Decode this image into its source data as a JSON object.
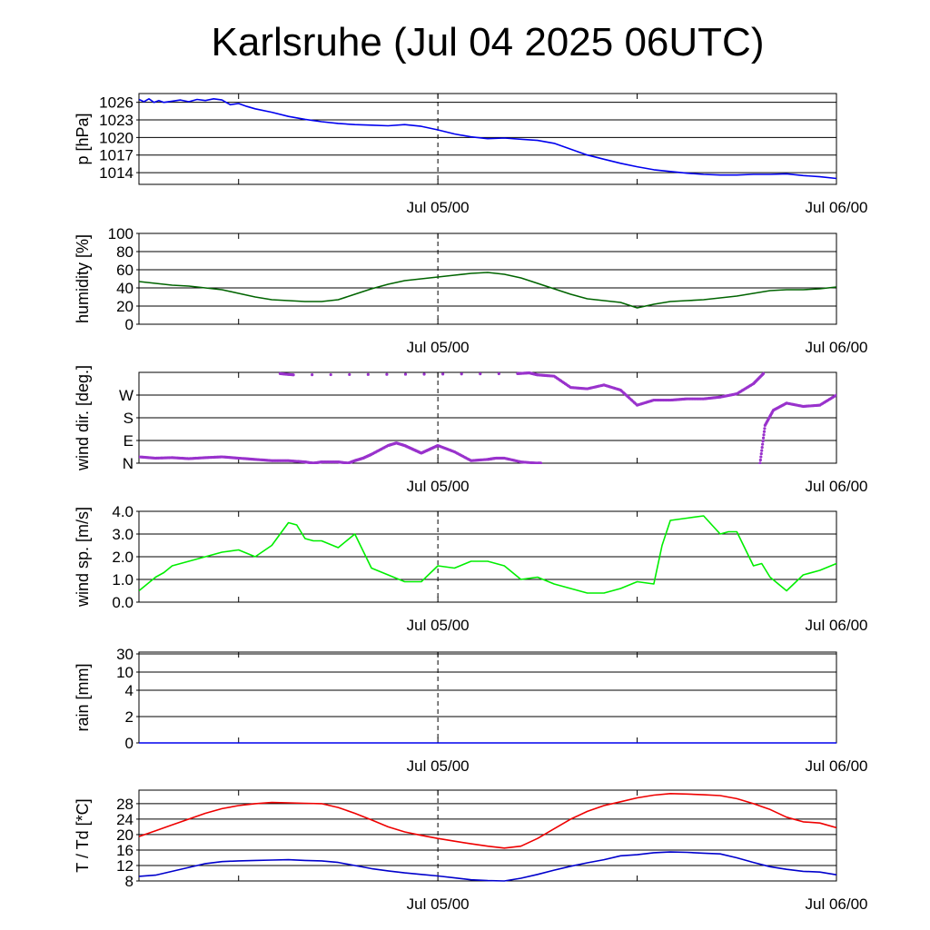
{
  "title": "Karlsruhe (Jul 04 2025 06UTC)",
  "colors": {
    "pressure": "#0000ee",
    "humidity": "#006400",
    "wind_dir": "#9932cc",
    "wind_speed": "#00ee00",
    "rain": "#0000ee",
    "temperature": "#ee0000",
    "dewpoint": "#0000cc",
    "grid": "#000000"
  },
  "x_axis": {
    "unit": "hours since Jul 04 06UTC",
    "range_hours": [
      0,
      42
    ],
    "major_tick_labels": [
      {
        "hour": 18,
        "label": "Jul 05/00"
      },
      {
        "hour": 42,
        "label": "Jul 06/00"
      }
    ],
    "minor_tick_hours": [
      6,
      18,
      30,
      42
    ],
    "marker_hour": 18
  },
  "chart_data": [
    {
      "type": "line",
      "panel": "pressure",
      "ylabel": "p [hPa]",
      "ylim": [
        1012,
        1027.5
      ],
      "yticks": [
        1026,
        1023,
        1020,
        1017,
        1014
      ],
      "ytick_labels": [
        "1026",
        "1023",
        "1020",
        "1017",
        "1014"
      ],
      "series": [
        {
          "x": [
            0,
            0.3,
            0.6,
            0.9,
            1.2,
            1.5,
            2,
            2.5,
            3,
            3.5,
            4,
            4.5,
            5,
            5.5,
            6,
            6.5,
            7,
            8,
            9,
            10,
            11,
            12,
            13,
            14,
            15,
            16,
            17,
            18,
            19,
            20,
            21,
            22,
            23,
            24,
            25,
            26,
            27,
            28,
            29,
            30,
            31,
            32,
            33,
            34,
            35,
            36,
            37,
            38,
            39,
            40,
            41,
            42
          ],
          "values": [
            1026.5,
            1026.1,
            1026.6,
            1026.0,
            1026.3,
            1026.0,
            1026.2,
            1026.4,
            1026.1,
            1026.5,
            1026.3,
            1026.6,
            1026.4,
            1025.6,
            1025.8,
            1025.3,
            1024.9,
            1024.3,
            1023.6,
            1023.1,
            1022.7,
            1022.4,
            1022.2,
            1022.1,
            1022.0,
            1022.2,
            1021.9,
            1021.3,
            1020.6,
            1020.1,
            1019.8,
            1019.9,
            1019.7,
            1019.5,
            1019.0,
            1018.0,
            1017.0,
            1016.3,
            1015.6,
            1015.0,
            1014.5,
            1014.2,
            1013.9,
            1013.7,
            1013.6,
            1013.6,
            1013.7,
            1013.7,
            1013.8,
            1013.5,
            1013.3,
            1013.0
          ]
        }
      ]
    },
    {
      "type": "line",
      "panel": "humidity",
      "ylabel": "humidity [%]",
      "ylim": [
        0,
        100
      ],
      "yticks": [
        0,
        20,
        40,
        60,
        80,
        100
      ],
      "ytick_labels": [
        "0",
        "20",
        "40",
        "60",
        "80",
        "100"
      ],
      "series": [
        {
          "x": [
            0,
            1,
            2,
            3,
            4,
            5,
            6,
            7,
            8,
            9,
            10,
            11,
            12,
            13,
            14,
            15,
            16,
            17,
            18,
            19,
            20,
            21,
            22,
            23,
            24,
            25,
            26,
            27,
            28,
            29,
            30,
            31,
            32,
            33,
            34,
            35,
            36,
            37,
            38,
            39,
            40,
            41,
            42
          ],
          "values": [
            47,
            45,
            43,
            42,
            40,
            38,
            34,
            30,
            27,
            26,
            25,
            25,
            27,
            33,
            39,
            44,
            48,
            50,
            52,
            54,
            56,
            57,
            55,
            51,
            45,
            39,
            33,
            28,
            26,
            24,
            18,
            22,
            25,
            26,
            27,
            29,
            31,
            34,
            37,
            38,
            38,
            39,
            41
          ]
        }
      ]
    },
    {
      "type": "scatter",
      "panel": "wind_direction",
      "ylabel": "wind dir. [deg.]",
      "ylim": [
        0,
        360
      ],
      "yticks": [
        0,
        90,
        180,
        270
      ],
      "ytick_labels": [
        "N",
        "E",
        "S",
        "W"
      ],
      "series": [
        {
          "name": "low",
          "x": [
            0,
            1,
            2,
            3,
            4,
            5,
            6,
            7,
            8,
            9,
            10,
            10.5,
            11,
            12,
            12.6,
            13,
            13.5,
            14,
            15,
            15.5,
            16,
            16.5,
            17,
            17.5,
            18,
            19,
            20,
            21,
            21.5,
            22,
            23,
            24,
            24.2
          ],
          "values": [
            25,
            20,
            22,
            18,
            22,
            25,
            20,
            15,
            10,
            10,
            5,
            0,
            5,
            5,
            0,
            10,
            20,
            35,
            70,
            80,
            70,
            55,
            40,
            55,
            70,
            45,
            10,
            15,
            20,
            20,
            5,
            0,
            0
          ]
        },
        {
          "name": "high",
          "x": [
            8.5,
            9.3,
            22.8,
            23.5,
            24,
            25,
            26,
            27,
            28,
            29,
            30,
            31,
            32,
            33,
            34,
            35,
            36,
            37,
            37.6
          ],
          "values": [
            355,
            350,
            355,
            358,
            350,
            345,
            300,
            295,
            310,
            290,
            230,
            250,
            250,
            255,
            255,
            262,
            275,
            315,
            355
          ]
        },
        {
          "name": "rise",
          "x": [
            37.4,
            37.7,
            38.2,
            39,
            40,
            41,
            42
          ],
          "values": [
            0,
            150,
            210,
            238,
            225,
            230,
            270
          ]
        }
      ]
    },
    {
      "type": "line",
      "panel": "wind_speed",
      "ylabel": "wind sp. [m/s]",
      "ylim": [
        0,
        4.0
      ],
      "yticks": [
        0,
        1,
        2,
        3,
        4
      ],
      "ytick_labels": [
        "0.0",
        "1.0",
        "2.0",
        "3.0",
        "4.0"
      ],
      "series": [
        {
          "x": [
            0,
            1,
            1.5,
            2,
            3,
            4,
            5,
            6,
            7,
            8,
            8.5,
            9,
            9.5,
            10,
            10.5,
            11,
            12,
            13,
            14,
            15,
            16,
            17,
            18,
            19,
            20,
            21,
            22,
            23,
            24,
            25,
            26,
            27,
            28,
            29,
            30,
            31,
            31.5,
            32,
            33,
            34,
            35,
            35.5,
            36,
            37,
            37.5,
            38,
            39,
            40,
            41,
            42
          ],
          "values": [
            0.5,
            1.1,
            1.3,
            1.6,
            1.8,
            2.0,
            2.2,
            2.3,
            2.0,
            2.5,
            3.0,
            3.5,
            3.4,
            2.8,
            2.7,
            2.7,
            2.4,
            3.0,
            1.5,
            1.2,
            0.9,
            0.9,
            1.6,
            1.5,
            1.8,
            1.8,
            1.6,
            1.0,
            1.1,
            0.8,
            0.6,
            0.4,
            0.4,
            0.6,
            0.9,
            0.8,
            2.5,
            3.6,
            3.7,
            3.8,
            3.0,
            3.1,
            3.1,
            1.6,
            1.7,
            1.1,
            0.5,
            1.2,
            1.4,
            1.7
          ]
        }
      ]
    },
    {
      "type": "line",
      "panel": "rain",
      "ylabel": "rain [mm]",
      "yticks": [
        0,
        2,
        4,
        10,
        30
      ],
      "ytick_labels": [
        "0",
        "2",
        "4",
        "10",
        "30"
      ],
      "series": [
        {
          "x": [
            0,
            42
          ],
          "values": [
            0,
            0
          ]
        }
      ]
    },
    {
      "type": "line",
      "panel": "temperature",
      "ylabel": "T / Td [*C]",
      "ylim": [
        8,
        31.5
      ],
      "yticks": [
        8,
        12,
        16,
        20,
        24,
        28
      ],
      "ytick_labels": [
        "8",
        "12",
        "16",
        "20",
        "24",
        "28"
      ],
      "series": [
        {
          "name": "T",
          "x": [
            0,
            1,
            2,
            3,
            4,
            5,
            6,
            7,
            8,
            9,
            10,
            11,
            12,
            13,
            14,
            15,
            16,
            17,
            18,
            19,
            20,
            21,
            22,
            23,
            24,
            25,
            26,
            27,
            28,
            29,
            30,
            31,
            32,
            33,
            34,
            35,
            36,
            37,
            38,
            39,
            40,
            41,
            42
          ],
          "values": [
            19.5,
            21,
            22.5,
            24,
            25.5,
            26.7,
            27.5,
            28,
            28.3,
            28.2,
            28.1,
            28,
            27,
            25.5,
            23.8,
            22,
            20.7,
            19.8,
            19,
            18.3,
            17.6,
            17,
            16.5,
            17,
            19,
            21.5,
            24,
            26,
            27.5,
            28.5,
            29.5,
            30.2,
            30.6,
            30.5,
            30.3,
            30.1,
            29.3,
            28,
            26.5,
            24.5,
            23.3,
            23,
            21.8
          ]
        },
        {
          "name": "Td",
          "x": [
            0,
            1,
            2,
            3,
            4,
            5,
            6,
            7,
            8,
            9,
            10,
            11,
            12,
            13,
            14,
            15,
            16,
            17,
            18,
            19,
            20,
            21,
            22,
            23,
            24,
            25,
            26,
            27,
            28,
            29,
            30,
            31,
            32,
            33,
            34,
            35,
            36,
            37,
            38,
            39,
            40,
            41,
            42
          ],
          "values": [
            9.2,
            9.5,
            10.5,
            11.5,
            12.5,
            13,
            13.2,
            13.3,
            13.4,
            13.5,
            13.3,
            13.2,
            12.8,
            12,
            11.2,
            10.6,
            10.1,
            9.7,
            9.3,
            8.8,
            8.3,
            8.1,
            8,
            8.7,
            9.7,
            10.8,
            11.8,
            12.7,
            13.5,
            14.5,
            14.8,
            15.3,
            15.5,
            15.4,
            15.2,
            15,
            14,
            12.8,
            11.7,
            11,
            10.5,
            10.3,
            9.6
          ]
        }
      ]
    }
  ]
}
